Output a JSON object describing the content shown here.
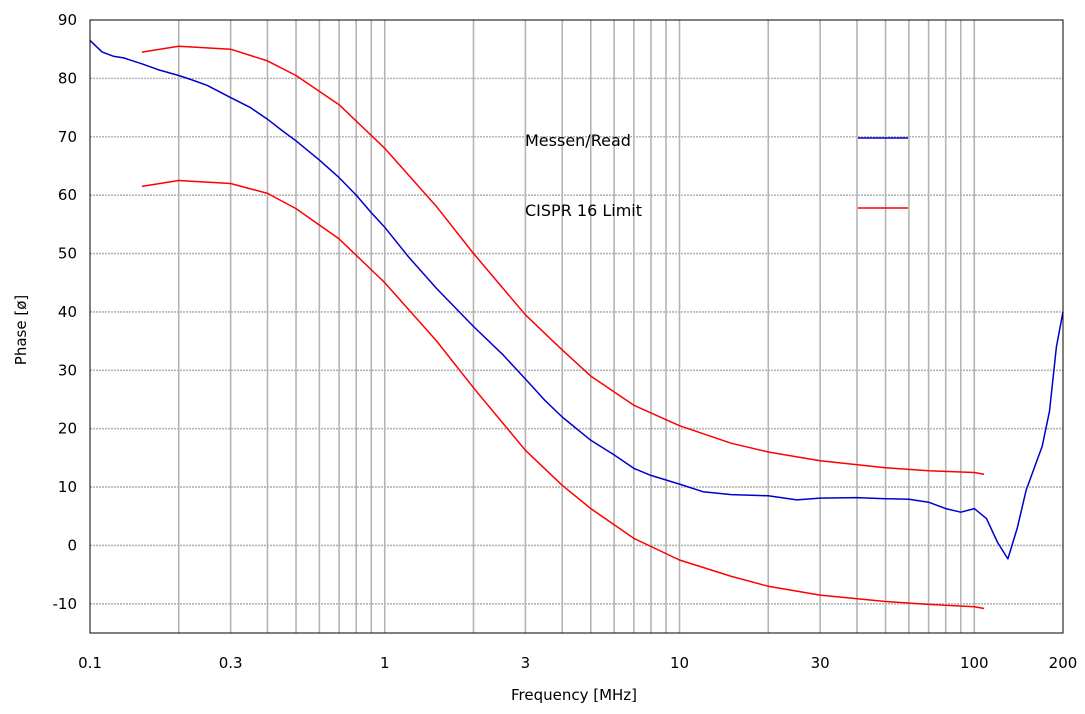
{
  "chart_data": {
    "type": "line",
    "title": "",
    "xlabel": "Frequency [MHz]",
    "ylabel": "Phase [ø]",
    "x_scale": "log",
    "xlim": [
      0.1,
      200
    ],
    "ylim": [
      -15,
      90
    ],
    "grid": true,
    "x_ticks": [
      {
        "value": 0.1,
        "label": "0.1"
      },
      {
        "value": 0.3,
        "label": "0.3"
      },
      {
        "value": 1,
        "label": "1"
      },
      {
        "value": 3,
        "label": "3"
      },
      {
        "value": 10,
        "label": "10"
      },
      {
        "value": 30,
        "label": "30"
      },
      {
        "value": 100,
        "label": "100"
      },
      {
        "value": 200,
        "label": "200"
      }
    ],
    "y_ticks": [
      {
        "value": 90,
        "label": "90"
      },
      {
        "value": 80,
        "label": "80"
      },
      {
        "value": 70,
        "label": "70"
      },
      {
        "value": 60,
        "label": "60"
      },
      {
        "value": 50,
        "label": "50"
      },
      {
        "value": 40,
        "label": "40"
      },
      {
        "value": 30,
        "label": "30"
      },
      {
        "value": 20,
        "label": "20"
      },
      {
        "value": 10,
        "label": "10"
      },
      {
        "value": 0,
        "label": "0"
      },
      {
        "value": -10,
        "label": "-10"
      }
    ],
    "legend_position": "upper-center",
    "series": [
      {
        "name": "Messen/Read",
        "color": "#0000cc",
        "x": [
          0.1,
          0.11,
          0.12,
          0.13,
          0.15,
          0.17,
          0.2,
          0.22,
          0.25,
          0.3,
          0.35,
          0.4,
          0.45,
          0.5,
          0.6,
          0.7,
          0.8,
          0.9,
          1.0,
          1.2,
          1.5,
          2,
          2.5,
          3,
          3.5,
          4,
          5,
          6,
          7,
          8,
          10,
          12,
          15,
          20,
          25,
          30,
          40,
          50,
          60,
          70,
          80,
          90,
          100,
          110,
          120,
          130,
          140,
          150,
          170,
          180,
          190,
          200
        ],
        "y": [
          86.5,
          84.5,
          83.8,
          83.5,
          82.5,
          81.5,
          80.5,
          79.8,
          78.8,
          76.7,
          75,
          73,
          71,
          69.3,
          66,
          63,
          60,
          57,
          54.5,
          49.5,
          44,
          37.5,
          32.8,
          28.5,
          24.8,
          22,
          18,
          15.5,
          13.2,
          12,
          10.5,
          9.2,
          8.7,
          8.5,
          7.8,
          8.1,
          8.2,
          8.0,
          7.9,
          7.4,
          6.3,
          5.7,
          6.3,
          4.6,
          0.5,
          -2.3,
          3,
          9.5,
          17,
          23,
          34,
          40
        ]
      },
      {
        "name": "CISPR 16 Limit",
        "color": "#ff0000",
        "x": [
          0.15,
          0.2,
          0.3,
          0.4,
          0.5,
          0.7,
          1.0,
          1.5,
          2,
          3,
          4,
          5,
          7,
          10,
          15,
          20,
          30,
          50,
          70,
          100,
          108
        ],
        "y": [
          84.5,
          85.5,
          85,
          83,
          80.5,
          75.5,
          68,
          58,
          50,
          39.5,
          33.5,
          29,
          24,
          20.5,
          17.5,
          16,
          14.5,
          13.3,
          12.8,
          12.5,
          12.2
        ]
      },
      {
        "name": "CISPR 16 Limit",
        "color": "#ff0000",
        "x": [
          0.15,
          0.2,
          0.3,
          0.4,
          0.5,
          0.7,
          1.0,
          1.5,
          2,
          3,
          4,
          5,
          7,
          10,
          15,
          20,
          30,
          50,
          70,
          100,
          108
        ],
        "y": [
          61.5,
          62.5,
          62,
          60.3,
          57.7,
          52.5,
          45,
          35,
          27,
          16.3,
          10.3,
          6.3,
          1.2,
          -2.5,
          -5.3,
          -7,
          -8.5,
          -9.6,
          -10.1,
          -10.5,
          -10.8
        ]
      }
    ],
    "legend": [
      {
        "label": "Messen/Read",
        "color": "#0000cc"
      },
      {
        "label": "CISPR 16 Limit",
        "color": "#ff0000"
      }
    ]
  }
}
